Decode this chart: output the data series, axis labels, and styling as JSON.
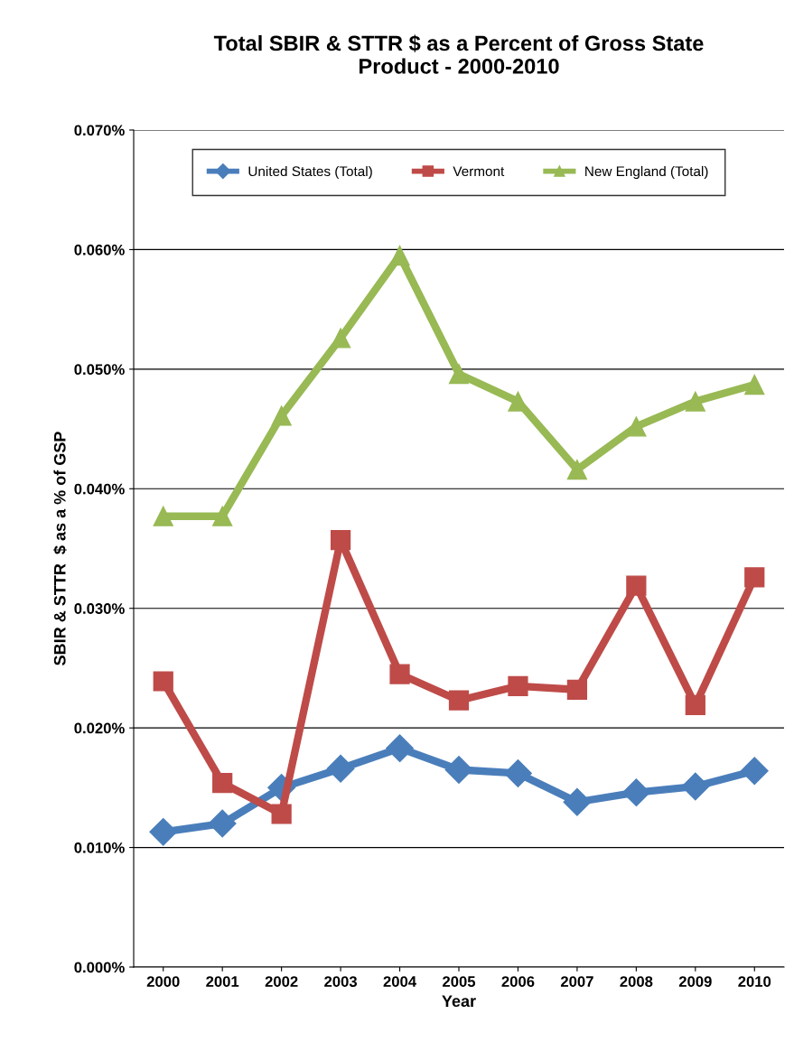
{
  "chart_data": {
    "type": "line",
    "title": "Total SBIR & STTR $ as a Percent of Gross State\nProduct - 2000-2010",
    "xlabel": "Year",
    "ylabel": "SBIR & STTR  $ as a % of GSP",
    "categories": [
      "2000",
      "2001",
      "2002",
      "2003",
      "2004",
      "2005",
      "2006",
      "2007",
      "2008",
      "2009",
      "2010"
    ],
    "series": [
      {
        "name": "United States (Total)",
        "color": "#4a7ebb",
        "marker": "diamond",
        "values": [
          0.0113,
          0.012,
          0.015,
          0.0166,
          0.0183,
          0.0165,
          0.0162,
          0.0138,
          0.0146,
          0.0151,
          0.0164
        ]
      },
      {
        "name": "Vermont",
        "color": "#be4b48",
        "marker": "square",
        "values": [
          0.0239,
          0.0154,
          0.0128,
          0.0357,
          0.0245,
          0.0223,
          0.0235,
          0.0232,
          0.0319,
          0.0219,
          0.0326
        ]
      },
      {
        "name": "New England (Total)",
        "color": "#98b954",
        "marker": "triangle",
        "values": [
          0.0377,
          0.0377,
          0.0461,
          0.0526,
          0.0595,
          0.0496,
          0.0473,
          0.0416,
          0.0452,
          0.0473,
          0.0487
        ]
      }
    ],
    "ylim": [
      0,
      0.07
    ],
    "yticks": [
      {
        "value": 0,
        "label": "0.000%"
      },
      {
        "value": 0.01,
        "label": "0.010%"
      },
      {
        "value": 0.02,
        "label": "0.020%"
      },
      {
        "value": 0.03,
        "label": "0.030%"
      },
      {
        "value": 0.04,
        "label": "0.040%"
      },
      {
        "value": 0.05,
        "label": "0.050%"
      },
      {
        "value": 0.06,
        "label": "0.060%"
      },
      {
        "value": 0.07,
        "label": "0.070%"
      }
    ],
    "grid": "y",
    "legend": "top",
    "line_style": "solid"
  }
}
